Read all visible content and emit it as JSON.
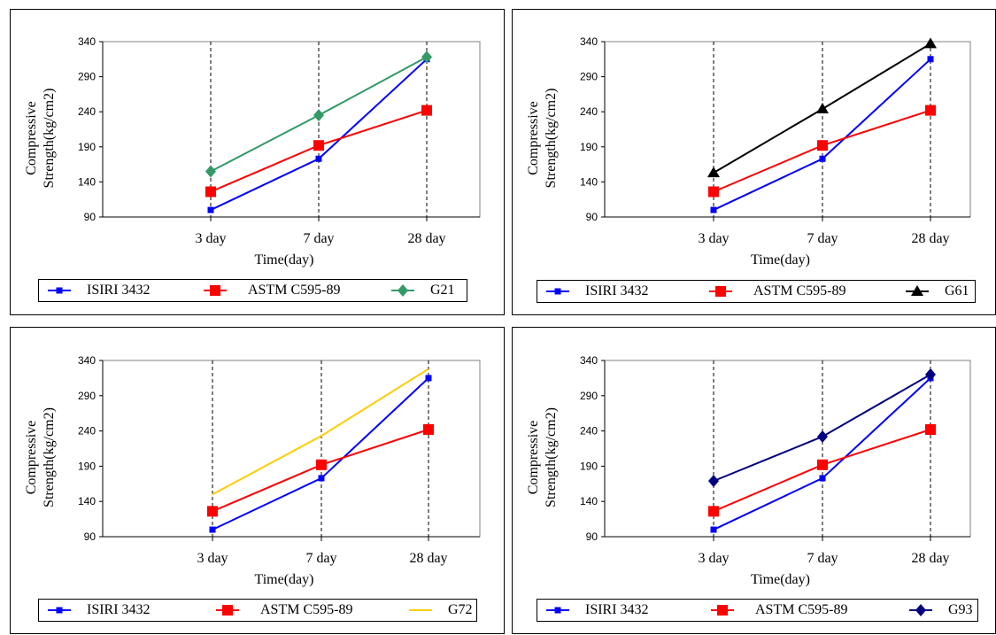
{
  "chart_data": [
    {
      "type": "line",
      "categories": [
        "3 day",
        "7 day",
        "28 day"
      ],
      "xlabel": "Time(day)",
      "ylabel": [
        "Compressive",
        "Strength(kg/cm2)"
      ],
      "ylim": [
        90,
        340
      ],
      "yticks": [
        90,
        140,
        190,
        240,
        290,
        340
      ],
      "grid": "vertical dashed lines at categories",
      "legend_position": "bottom",
      "series": [
        {
          "name": "ISIRI 3432",
          "values": [
            100,
            173,
            315
          ],
          "color": "#0000ff",
          "marker": "small-square"
        },
        {
          "name": "ASTM C595-89",
          "values": [
            126,
            192,
            242
          ],
          "color": "#ff0000",
          "marker": "square"
        },
        {
          "name": "G21",
          "values": [
            155,
            235,
            318
          ],
          "color": "#339966",
          "marker": "diamond"
        }
      ]
    },
    {
      "type": "line",
      "categories": [
        "3 day",
        "7 day",
        "28 day"
      ],
      "xlabel": "Time(day)",
      "ylabel": [
        "Compressive",
        "Strength(kg/cm2)"
      ],
      "ylim": [
        90,
        340
      ],
      "yticks": [
        90,
        140,
        190,
        240,
        290,
        340
      ],
      "grid": "vertical dashed lines at categories",
      "legend_position": "bottom",
      "series": [
        {
          "name": "ISIRI 3432",
          "values": [
            100,
            173,
            315
          ],
          "color": "#0000ff",
          "marker": "small-square"
        },
        {
          "name": "ASTM C595-89",
          "values": [
            126,
            192,
            242
          ],
          "color": "#ff0000",
          "marker": "square"
        },
        {
          "name": "G61",
          "values": [
            153,
            244,
            337
          ],
          "color": "#000000",
          "marker": "triangle"
        }
      ]
    },
    {
      "type": "line",
      "categories": [
        "3 day",
        "7 day",
        "28 day"
      ],
      "xlabel": "Time(day)",
      "ylabel": [
        "Compressive",
        "Strength(kg/cm2)"
      ],
      "ylim": [
        90,
        340
      ],
      "yticks": [
        90,
        140,
        190,
        240,
        290,
        340
      ],
      "grid": "vertical dashed lines at categories",
      "legend_position": "bottom",
      "series": [
        {
          "name": "ISIRI 3432",
          "values": [
            100,
            173,
            315
          ],
          "color": "#0000ff",
          "marker": "small-square"
        },
        {
          "name": "ASTM C595-89",
          "values": [
            126,
            192,
            242
          ],
          "color": "#ff0000",
          "marker": "square"
        },
        {
          "name": "G72",
          "values": [
            150,
            233,
            328
          ],
          "color": "#ffcc00",
          "marker": "none"
        }
      ]
    },
    {
      "type": "line",
      "categories": [
        "3 day",
        "7 day",
        "28 day"
      ],
      "xlabel": "Time(day)",
      "ylabel": [
        "Compressive",
        "Strength(kg/cm2)"
      ],
      "ylim": [
        90,
        340
      ],
      "yticks": [
        90,
        140,
        190,
        240,
        290,
        340
      ],
      "grid": "vertical dashed lines at categories",
      "legend_position": "bottom",
      "series": [
        {
          "name": "ISIRI 3432",
          "values": [
            100,
            173,
            315
          ],
          "color": "#0000ff",
          "marker": "small-square"
        },
        {
          "name": "ASTM C595-89",
          "values": [
            126,
            192,
            242
          ],
          "color": "#ff0000",
          "marker": "square"
        },
        {
          "name": "G93",
          "values": [
            169,
            232,
            320
          ],
          "color": "#000080",
          "marker": "diamond"
        }
      ]
    }
  ]
}
